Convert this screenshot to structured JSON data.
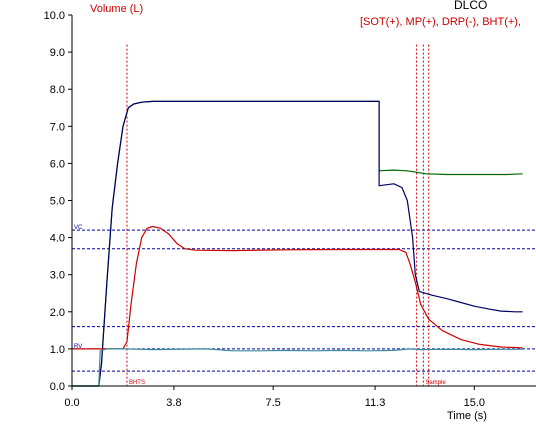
{
  "chart_data": {
    "type": "line",
    "title": "DLCO",
    "subtitle": "[SOT(+), MP(+), DRP(-), BHT(+),",
    "ylabel": "Volume (L)",
    "xlabel": "Time (s)",
    "xlim": [
      0,
      17.3
    ],
    "ylim": [
      0,
      10
    ],
    "x_ticks": [
      "0.0",
      "3.8",
      "7.5",
      "11.3",
      "15.0"
    ],
    "x_tick_values": [
      0,
      3.8,
      7.5,
      11.3,
      15.0
    ],
    "y_ticks": [
      "0.0",
      "1.0",
      "2.0",
      "3.0",
      "4.0",
      "5.0",
      "6.0",
      "7.0",
      "8.0",
      "9.0",
      "10.0"
    ],
    "y_tick_values": [
      0,
      1,
      2,
      3,
      4,
      5,
      6,
      7,
      8,
      9,
      10
    ],
    "grid": false,
    "colors": {
      "axis": "#000000",
      "title": "#000000",
      "subtitle": "#cc0000",
      "ylabel": "#cc0000",
      "reference": "#0000aa",
      "markers": "#cc0000"
    },
    "reference_lines": [
      {
        "y": 4.2,
        "label": "VC"
      },
      {
        "y": 3.7,
        "label": ""
      },
      {
        "y": 1.6,
        "label": ""
      },
      {
        "y": 1.0,
        "label": "RV"
      },
      {
        "y": 0.4,
        "label": ""
      }
    ],
    "markers": [
      {
        "x": 2.05,
        "label": "BHTS"
      },
      {
        "x": 12.85,
        "label": ""
      },
      {
        "x": 13.1,
        "label": "Sample"
      },
      {
        "x": 13.3,
        "label": ""
      }
    ],
    "series": [
      {
        "name": "",
        "color": "#006600",
        "points": [
          [
            0,
            0
          ],
          [
            1.0,
            0
          ],
          [
            1.1,
            0.6
          ],
          [
            1.3,
            2.8
          ],
          [
            1.5,
            4.8
          ],
          [
            1.7,
            6.0
          ],
          [
            1.9,
            7.0
          ],
          [
            2.1,
            7.5
          ],
          [
            2.3,
            7.6
          ],
          [
            2.6,
            7.65
          ],
          [
            3.0,
            7.67
          ],
          [
            11.45,
            7.67
          ],
          [
            11.45,
            5.8
          ],
          [
            12.0,
            5.82
          ],
          [
            12.5,
            5.8
          ],
          [
            13.2,
            5.72
          ],
          [
            14.0,
            5.7
          ],
          [
            15.0,
            5.7
          ],
          [
            16.2,
            5.7
          ],
          [
            16.8,
            5.72
          ]
        ]
      },
      {
        "name": "",
        "color": "#000066",
        "points": [
          [
            0,
            0
          ],
          [
            1.0,
            0
          ],
          [
            1.1,
            0.6
          ],
          [
            1.3,
            2.8
          ],
          [
            1.5,
            4.8
          ],
          [
            1.7,
            6.0
          ],
          [
            1.9,
            7.0
          ],
          [
            2.1,
            7.5
          ],
          [
            2.3,
            7.6
          ],
          [
            2.6,
            7.65
          ],
          [
            3.0,
            7.67
          ],
          [
            11.45,
            7.67
          ],
          [
            11.45,
            5.4
          ],
          [
            12.0,
            5.45
          ],
          [
            12.3,
            5.35
          ],
          [
            12.5,
            5.0
          ],
          [
            12.7,
            4.0
          ],
          [
            12.8,
            3.0
          ],
          [
            12.95,
            2.55
          ],
          [
            13.4,
            2.45
          ],
          [
            14.0,
            2.35
          ],
          [
            14.5,
            2.25
          ],
          [
            15.0,
            2.15
          ],
          [
            15.5,
            2.08
          ],
          [
            16.0,
            2.02
          ],
          [
            16.5,
            2.0
          ],
          [
            16.8,
            2.0
          ]
        ]
      },
      {
        "name": "",
        "color": "#cc0000",
        "points": [
          [
            0,
            1.0
          ],
          [
            1.9,
            1.0
          ],
          [
            2.05,
            1.2
          ],
          [
            2.2,
            2.2
          ],
          [
            2.4,
            3.3
          ],
          [
            2.6,
            4.0
          ],
          [
            2.8,
            4.25
          ],
          [
            3.0,
            4.3
          ],
          [
            3.3,
            4.25
          ],
          [
            3.6,
            4.1
          ],
          [
            3.9,
            3.85
          ],
          [
            4.2,
            3.7
          ],
          [
            4.6,
            3.66
          ],
          [
            6.0,
            3.65
          ],
          [
            8.0,
            3.67
          ],
          [
            10.0,
            3.68
          ],
          [
            11.3,
            3.68
          ],
          [
            12.2,
            3.68
          ],
          [
            12.45,
            3.6
          ],
          [
            12.6,
            3.3
          ],
          [
            12.8,
            2.8
          ],
          [
            13.0,
            2.2
          ],
          [
            13.3,
            1.8
          ],
          [
            13.8,
            1.5
          ],
          [
            14.5,
            1.25
          ],
          [
            15.2,
            1.12
          ],
          [
            16.0,
            1.05
          ],
          [
            16.8,
            1.03
          ]
        ]
      },
      {
        "name": "",
        "color": "#3a8aa0",
        "points": [
          [
            0,
            0
          ],
          [
            1.0,
            0
          ],
          [
            1.05,
            0.95
          ],
          [
            1.3,
            1.0
          ],
          [
            2.0,
            1.0
          ],
          [
            3.0,
            0.98
          ],
          [
            5.0,
            1.0
          ],
          [
            6.0,
            0.95
          ],
          [
            7.0,
            0.95
          ],
          [
            8.0,
            0.96
          ],
          [
            9.0,
            0.95
          ],
          [
            10.0,
            0.96
          ],
          [
            11.0,
            0.95
          ],
          [
            12.0,
            0.96
          ],
          [
            12.6,
            1.0
          ],
          [
            13.0,
            0.98
          ],
          [
            14.0,
            0.99
          ],
          [
            15.0,
            0.98
          ],
          [
            16.0,
            0.99
          ],
          [
            16.8,
            0.99
          ]
        ]
      }
    ]
  }
}
